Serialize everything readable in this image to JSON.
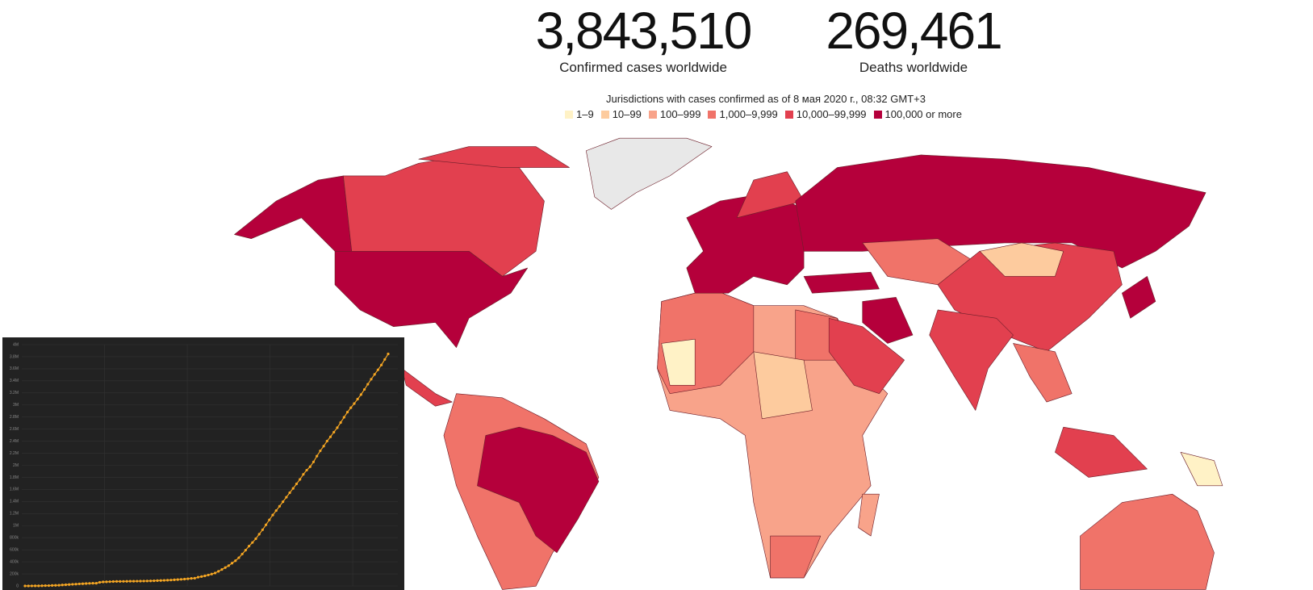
{
  "header": {
    "stats": [
      {
        "value": "3,843,510",
        "label": "Confirmed cases worldwide"
      },
      {
        "value": "269,461",
        "label": "Deaths worldwide"
      }
    ],
    "subtitle": "Jurisdictions with cases confirmed as of 8 мая 2020 г., 08:32 GMT+3"
  },
  "legend": [
    {
      "label": "1–9",
      "color": "#fff2c6"
    },
    {
      "label": "10–99",
      "color": "#fdcb9e"
    },
    {
      "label": "100–999",
      "color": "#f8a38a"
    },
    {
      "label": "1,000–9,999",
      "color": "#f07369"
    },
    {
      "label": "10,000–99,999",
      "color": "#e2404f"
    },
    {
      "label": "100,000 or more",
      "color": "#b5003b"
    }
  ],
  "chart_data": {
    "type": "line",
    "color": "#f5a623",
    "grid": true,
    "values": [
      555,
      654,
      941,
      1434,
      2118,
      2927,
      5578,
      6166,
      8234,
      9927,
      12038,
      16787,
      19881,
      23892,
      27635,
      30794,
      34391,
      37120,
      40150,
      42762,
      44802,
      45221,
      60368,
      66885,
      69030,
      71224,
      73258,
      75136,
      75639,
      76197,
      76819,
      78572,
      78958,
      79561,
      80406,
      81388,
      82746,
      84112,
      86011,
      88369,
      90306,
      92840,
      95120,
      97886,
      101801,
      105847,
      109821,
      113590,
      118620,
      125875,
      128352,
      145205,
      156101,
      167454,
      181574,
      197102,
      214821,
      242570,
      272208,
      304507,
      336953,
      378235,
      418045,
      467653,
      529591,
      593291,
      660706,
      720117,
      782365,
      857487,
      932605,
      1013466,
      1095917,
      1176060,
      1249754,
      1321481,
      1396476,
      1470956,
      1544894,
      1617204,
      1692777,
      1766202,
      1850220,
      1919126,
      1976181,
      2056054,
      2152437,
      2240190,
      2317759,
      2401378,
      2472259,
      2549294,
      2624000,
      2708885,
      2795729,
      2881140,
      2955033,
      3023722,
      3097229,
      3172287,
      3256846,
      3343777,
      3427343,
      3506729,
      3583055,
      3662691,
      3755341,
      3845718
    ],
    "ylim": [
      0,
      4000000
    ],
    "yticks": [
      0,
      {
        "value": 200000,
        "label": "200k"
      },
      {
        "value": 400000,
        "label": "400k"
      },
      {
        "value": 600000,
        "label": "600k"
      },
      {
        "value": 800000,
        "label": "800k"
      },
      {
        "value": 1000000,
        "label": "1M"
      },
      {
        "value": 1200000,
        "label": "1.2M"
      },
      {
        "value": 1400000,
        "label": "1.4M"
      },
      {
        "value": 1600000,
        "label": "1.6M"
      },
      {
        "value": 1800000,
        "label": "1.8M"
      },
      {
        "value": 2000000,
        "label": "2M"
      },
      {
        "value": 2200000,
        "label": "2.2M"
      },
      {
        "value": 2400000,
        "label": "2.4M"
      },
      {
        "value": 2600000,
        "label": "2.6M"
      },
      {
        "value": 2800000,
        "label": "2.8M"
      },
      {
        "value": 3000000,
        "label": "3M"
      },
      {
        "value": 3200000,
        "label": "3.2M"
      },
      {
        "value": 3400000,
        "label": "3.4M"
      },
      {
        "value": 3600000,
        "label": "3.6M"
      },
      {
        "value": 3800000,
        "label": "3.8M"
      },
      {
        "value": 4000000,
        "label": "4M"
      }
    ]
  }
}
